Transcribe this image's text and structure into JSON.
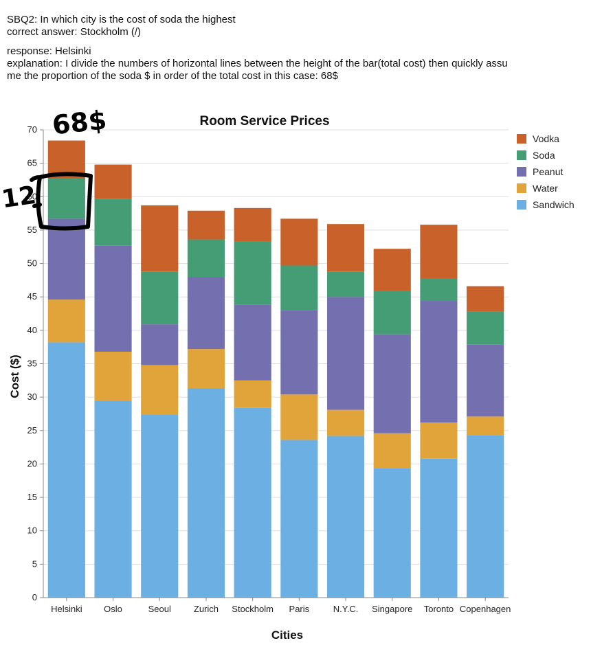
{
  "header": {
    "question": "SBQ2: In which city is the cost of soda the highest",
    "correct_answer": "correct answer: Stockholm (/)",
    "response": "response: Helsinki",
    "explanation_line1": "explanation: I divide the numbers of horizontal lines between the height of the bar(total cost) then quickly assu",
    "explanation_line2": "me the proportion of the soda $ in order of the total cost in this case: 68$"
  },
  "annotations": {
    "total_note": "68$",
    "soda_note": "12"
  },
  "colors": {
    "Vodka": "#c8612a",
    "Soda": "#459d76",
    "Peanut": "#7470b0",
    "Water": "#e0a43a",
    "Sandwich": "#6cb0e3"
  },
  "chart_data": {
    "type": "bar",
    "stacked": true,
    "title": "Room Service Prices",
    "xlabel": "Cities",
    "ylabel": "Cost ($)",
    "ylim": [
      0,
      70
    ],
    "yticks": [
      0,
      5,
      10,
      15,
      20,
      25,
      30,
      35,
      40,
      45,
      50,
      55,
      60,
      65,
      70
    ],
    "grid": true,
    "legend": "top-right",
    "categories": [
      "Helsinki",
      "Oslo",
      "Seoul",
      "Zurich",
      "Stockholm",
      "Paris",
      "N.Y.C.",
      "Singapore",
      "Toronto",
      "Copenhagen"
    ],
    "series": [
      {
        "name": "Sandwich",
        "values": [
          38.2,
          29.4,
          27.4,
          31.3,
          28.4,
          23.6,
          24.2,
          19.4,
          20.8,
          24.3
        ]
      },
      {
        "name": "Water",
        "values": [
          6.4,
          7.4,
          7.4,
          5.9,
          4.1,
          6.8,
          3.9,
          5.2,
          5.4,
          2.8
        ]
      },
      {
        "name": "Peanut",
        "values": [
          12.1,
          15.9,
          6.1,
          10.8,
          11.3,
          12.6,
          16.9,
          14.8,
          18.2,
          10.8
        ]
      },
      {
        "name": "Soda",
        "values": [
          6.0,
          7.0,
          7.9,
          5.6,
          9.5,
          6.7,
          3.8,
          6.5,
          3.4,
          4.9
        ]
      },
      {
        "name": "Vodka",
        "values": [
          5.7,
          5.1,
          9.9,
          4.3,
          5.0,
          7.0,
          7.1,
          6.3,
          8.0,
          3.8
        ]
      }
    ],
    "legend_order": [
      "Vodka",
      "Soda",
      "Peanut",
      "Water",
      "Sandwich"
    ]
  }
}
